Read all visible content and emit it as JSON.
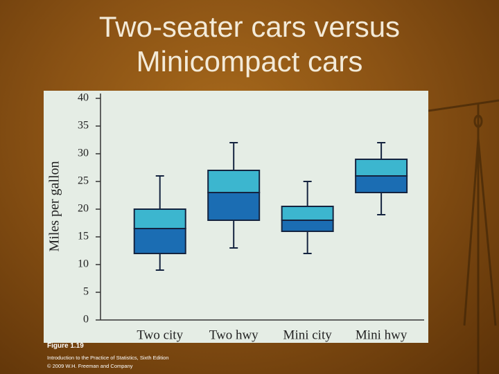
{
  "chart_data": {
    "type": "box",
    "title": "Two-seater cars versus Minicompact cars",
    "ylabel": "Miles per gallon",
    "categories": [
      "Two city",
      "Two hwy",
      "Mini city",
      "Mini hwy"
    ],
    "min": [
      9,
      13,
      12,
      19
    ],
    "q1": [
      12,
      18,
      16,
      23
    ],
    "median": [
      16.5,
      23,
      18,
      26
    ],
    "q3": [
      20,
      27,
      20.5,
      29
    ],
    "max": [
      26,
      32,
      25,
      32
    ],
    "upper_color": "#3cb6cf",
    "lower_color": "#1b6db3",
    "ylim": [
      0,
      40
    ],
    "yticks": [
      0,
      5,
      10,
      15,
      20,
      25,
      30,
      35,
      40
    ]
  },
  "captions": [
    "Figure 1.19",
    "Introduction to the Practice of Statistics, Sixth Edition",
    "© 2009 W.H. Freeman and Company"
  ]
}
